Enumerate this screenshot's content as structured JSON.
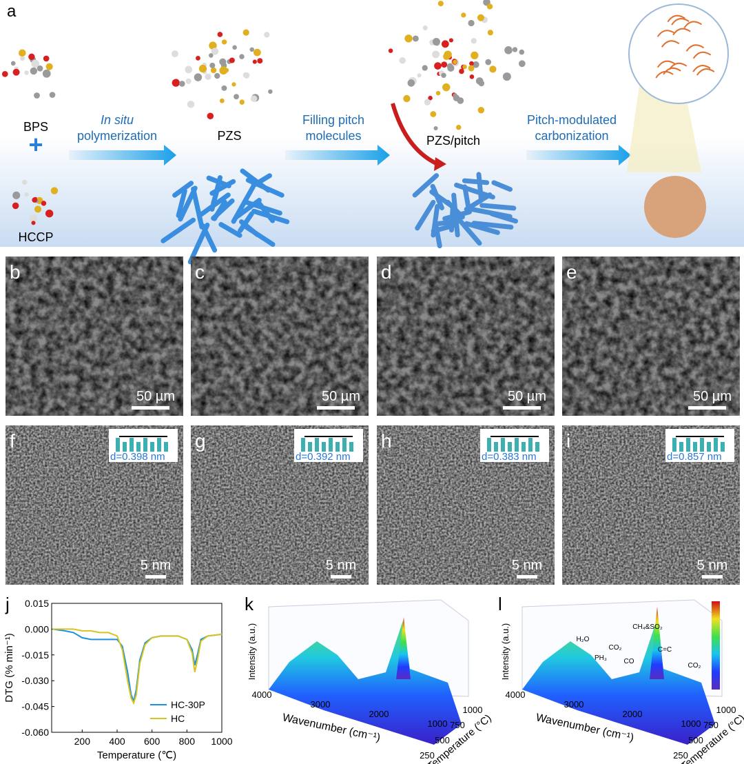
{
  "panel_a": {
    "label": "a",
    "bps": "BPS",
    "hccp": "HCCP",
    "step1_italic": "In situ",
    "step1": "polymerization",
    "pzs": "PZS",
    "step2_line1": "Filling pitch",
    "step2_line2": "molecules",
    "pzs_pitch": "PZS/pitch",
    "step3_line1": "Pitch-modulated",
    "step3_line2": "carbonization"
  },
  "sem": [
    {
      "label": "b",
      "scale": "50 µm"
    },
    {
      "label": "c",
      "scale": "50 µm"
    },
    {
      "label": "d",
      "scale": "50 µm"
    },
    {
      "label": "e",
      "scale": "50 µm"
    }
  ],
  "tem": [
    {
      "label": "f",
      "d": "d=0.398 nm",
      "scale": "5 nm"
    },
    {
      "label": "g",
      "d": "d=0.392 nm",
      "scale": "5 nm"
    },
    {
      "label": "h",
      "d": "d=0.383 nm",
      "scale": "5 nm"
    },
    {
      "label": "i",
      "d": "d=0.857 nm",
      "scale": "5 nm"
    }
  ],
  "chart_data": {
    "type": "line",
    "label": "j",
    "xlabel": "Temperature (℃)",
    "ylabel": "DTG (% min⁻¹)",
    "x": [
      30,
      100,
      150,
      200,
      250,
      300,
      350,
      400,
      430,
      460,
      480,
      495,
      510,
      530,
      560,
      600,
      650,
      700,
      750,
      800,
      830,
      845,
      860,
      880,
      920,
      1000
    ],
    "series": [
      {
        "name": "HC-30P",
        "color": "#1b8fe0",
        "values": [
          0,
          -0.001,
          -0.002,
          -0.005,
          -0.006,
          -0.006,
          -0.006,
          -0.006,
          -0.01,
          -0.025,
          -0.038,
          -0.042,
          -0.035,
          -0.018,
          -0.008,
          -0.005,
          -0.004,
          -0.004,
          -0.004,
          -0.006,
          -0.012,
          -0.021,
          -0.015,
          -0.006,
          -0.004,
          -0.003
        ]
      },
      {
        "name": "HC",
        "color": "#d6c51e",
        "values": [
          0,
          0,
          0,
          -0.001,
          -0.001,
          -0.002,
          -0.002,
          -0.004,
          -0.012,
          -0.03,
          -0.04,
          -0.043,
          -0.038,
          -0.02,
          -0.009,
          -0.005,
          -0.004,
          -0.004,
          -0.004,
          -0.006,
          -0.014,
          -0.025,
          -0.018,
          -0.007,
          -0.004,
          -0.003
        ]
      }
    ],
    "xlim": [
      25,
      1000
    ],
    "xticks": [
      200,
      400,
      600,
      800,
      1000
    ],
    "ylim": [
      -0.06,
      0.015
    ],
    "yticks": [
      0.015,
      {
        "value": 0,
        "label": "0.000"
      },
      -0.015,
      {
        "value": -0.03,
        "label": "-0.030"
      },
      -0.045,
      {
        "value": -0.06,
        "label": "-0.060"
      }
    ],
    "legend": "lower right"
  },
  "panel_k": {
    "label": "k",
    "zlabel": "Intensity (a.u.)",
    "xlabel": "Wavenumber (cm⁻¹)",
    "ylabel": "Temperature (°C)",
    "xticks": [
      "4000",
      "3000",
      "2000",
      "1000"
    ],
    "yticks": [
      "250",
      "500",
      "750",
      "1000"
    ]
  },
  "panel_l": {
    "label": "l",
    "zlabel": "Intensity (a.u.)",
    "xlabel": "Wavenumber (cm⁻¹)",
    "ylabel": "Temperature (°C)",
    "xticks": [
      "4000",
      "3000",
      "2000",
      "1000"
    ],
    "yticks": [
      "250",
      "500",
      "750",
      "1000"
    ],
    "annotations": [
      "H₂O",
      "PH₃",
      "CO₂",
      "CO",
      "CH₄&SO₂",
      "C=C",
      "CO₂"
    ]
  }
}
